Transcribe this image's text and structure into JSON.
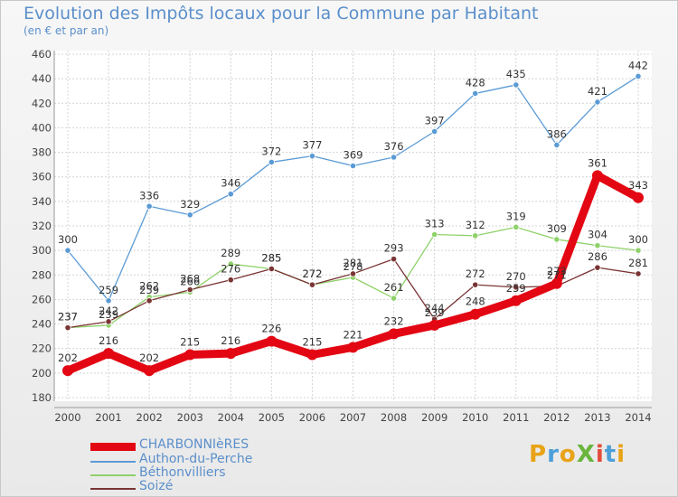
{
  "chart_data": {
    "type": "line",
    "title": "Evolution des Impôts locaux pour la Commune par Habitant",
    "subtitle": "(en € et par an)",
    "x": [
      "2000",
      "2001",
      "2002",
      "2003",
      "2004",
      "2005",
      "2006",
      "2007",
      "2008",
      "2009",
      "2010",
      "2011",
      "2012",
      "2013",
      "2014"
    ],
    "yticks": [
      "180",
      "200",
      "220",
      "240",
      "260",
      "280",
      "300",
      "320",
      "340",
      "360",
      "380",
      "400",
      "420",
      "440",
      "460"
    ],
    "ylim": [
      180,
      460
    ],
    "grid": true,
    "series": [
      {
        "name": "CHARBONNIèRES",
        "color": "#e30613",
        "values": [
          202,
          216,
          202,
          215,
          216,
          226,
          215,
          221,
          232,
          239,
          248,
          259,
          273,
          361,
          343
        ],
        "labels": [
          "202",
          "216",
          "202",
          "215",
          "216",
          "226",
          "215",
          "221",
          "232",
          "239",
          "248",
          "259",
          "273",
          "361",
          "343"
        ]
      },
      {
        "name": "Authon-du-Perche",
        "color": "#5b9bd5",
        "values": [
          300,
          259,
          336,
          329,
          346,
          372,
          377,
          369,
          376,
          397,
          428,
          435,
          386,
          421,
          442
        ],
        "labels": [
          "300",
          "259",
          "336",
          "329",
          "346",
          "372",
          "377",
          "369",
          "376",
          "397",
          "428",
          "435",
          "386",
          "421",
          "442"
        ]
      },
      {
        "name": "Béthonvilliers",
        "color": "#8fd16a",
        "values": [
          237,
          239,
          262,
          266,
          289,
          285,
          272,
          278,
          261,
          313,
          312,
          319,
          309,
          304,
          300
        ],
        "labels": [
          "237",
          "239",
          "262",
          "266",
          "289",
          "285",
          "272",
          "278",
          "261",
          "313",
          "312",
          "319",
          "309",
          "304",
          "300"
        ]
      },
      {
        "name": "Soizé",
        "color": "#7a3434",
        "values": [
          237,
          242,
          259,
          268,
          276,
          285,
          272,
          281,
          293,
          244,
          272,
          270,
          271,
          286,
          281
        ],
        "labels": [
          "237",
          "242",
          "259",
          "268",
          "276",
          "285",
          "272",
          "281",
          "293",
          "244",
          "272",
          "270",
          "271",
          "286",
          "281"
        ]
      }
    ]
  },
  "logo_text": "ProXiti",
  "logo_colors": [
    "#e8a317",
    "#4c9fd9",
    "#e8a317",
    "#69b53d",
    "#e34b3c",
    "#4c9fd9",
    "#e8a317"
  ]
}
